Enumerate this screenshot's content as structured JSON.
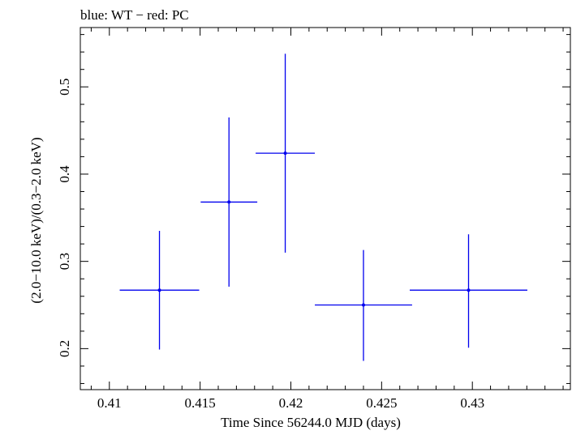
{
  "chart_data": {
    "type": "scatter",
    "title": "blue: WT − red: PC",
    "xlabel": "Time Since 56244.0 MJD (days)",
    "ylabel": "(2.0−10.0 keV)/(0.3−2.0 keV)",
    "xlim": [
      0.4084,
      0.4354
    ],
    "ylim": [
      0.153,
      0.568
    ],
    "grid": false,
    "x_ticks": [
      {
        "value": 0.41,
        "label": "0.41"
      },
      {
        "value": 0.415,
        "label": "0.415"
      },
      {
        "value": 0.42,
        "label": "0.42"
      },
      {
        "value": 0.425,
        "label": "0.425"
      },
      {
        "value": 0.43,
        "label": "0.43"
      }
    ],
    "y_ticks": [
      {
        "value": 0.2,
        "label": "0.2"
      },
      {
        "value": 0.3,
        "label": "0.3"
      },
      {
        "value": 0.4,
        "label": "0.4"
      },
      {
        "value": 0.5,
        "label": "0.5"
      }
    ],
    "series": [
      {
        "name": "WT",
        "color": "#0000ee",
        "points": [
          {
            "x": 0.41276,
            "y": 0.267,
            "xerr_lo": 0.00219,
            "xerr_hi": 0.00219,
            "y_lo": 0.199,
            "y_hi": 0.335
          },
          {
            "x": 0.41659,
            "y": 0.368,
            "xerr_lo": 0.00156,
            "xerr_hi": 0.00156,
            "y_lo": 0.271,
            "y_hi": 0.465
          },
          {
            "x": 0.41969,
            "y": 0.424,
            "xerr_lo": 0.00163,
            "xerr_hi": 0.00163,
            "y_lo": 0.31,
            "y_hi": 0.538
          },
          {
            "x": 0.424,
            "y": 0.25,
            "xerr_lo": 0.00268,
            "xerr_hi": 0.00268,
            "y_lo": 0.186,
            "y_hi": 0.313
          },
          {
            "x": 0.42979,
            "y": 0.267,
            "xerr_lo": 0.00324,
            "xerr_hi": 0.00324,
            "y_lo": 0.201,
            "y_hi": 0.331
          }
        ]
      }
    ]
  }
}
